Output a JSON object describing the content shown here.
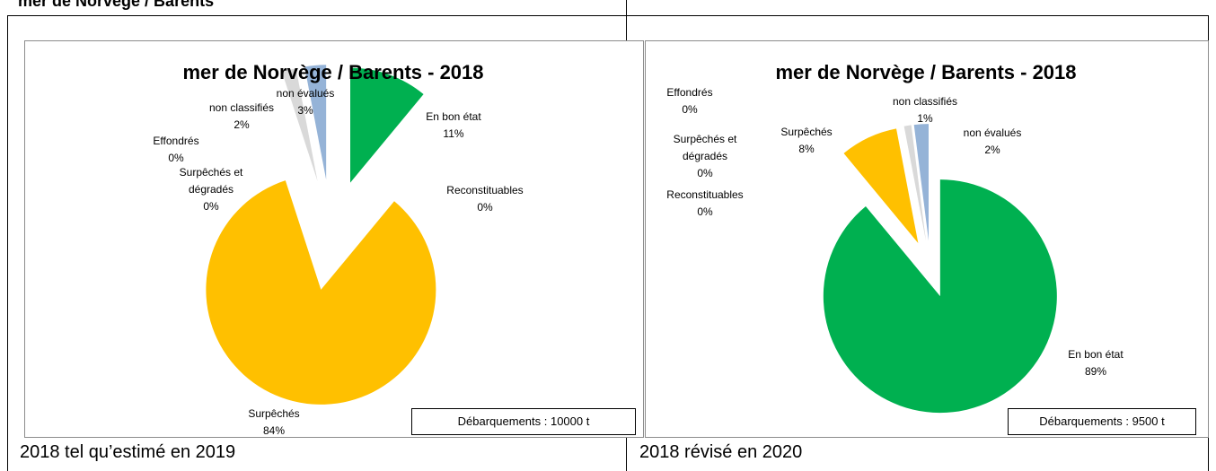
{
  "header": "mer de Norvège / Barents",
  "captions": [
    "2018 tel qu’estimé en 2019",
    "2018 révisé en 2020"
  ],
  "chart_data": [
    {
      "type": "pie",
      "title": "mer de Norvège / Barents - 2018",
      "categories": [
        "En bon état",
        "Reconstituables",
        "Surpêchés",
        "Surpêchés et dégradés",
        "Effondrés",
        "non classifiés",
        "non évalués"
      ],
      "values": [
        11,
        0,
        84,
        0,
        0,
        2,
        3
      ],
      "value_labels": [
        "11%",
        "0%",
        "84%",
        "0%",
        "0%",
        "2%",
        "3%"
      ],
      "colors": [
        "#00b050",
        "#92d050",
        "#ffc000",
        "#e46c0a",
        "#ff0000",
        "#d9d9d9",
        "#95b3d7"
      ],
      "annotation": "Débarquements : 10000 t"
    },
    {
      "type": "pie",
      "title": "mer de Norvège / Barents - 2018",
      "categories": [
        "En bon état",
        "Reconstituables",
        "Surpêchés",
        "Surpêchés et dégradés",
        "Effondrés",
        "non classifiés",
        "non évalués"
      ],
      "values": [
        89,
        0,
        8,
        0,
        0,
        1,
        2
      ],
      "value_labels": [
        "89%",
        "0%",
        "8%",
        "0%",
        "0%",
        "1%",
        "2%"
      ],
      "colors": [
        "#00b050",
        "#92d050",
        "#ffc000",
        "#e46c0a",
        "#ff0000",
        "#d9d9d9",
        "#95b3d7"
      ],
      "annotation": "Débarquements : 9500 t"
    }
  ]
}
